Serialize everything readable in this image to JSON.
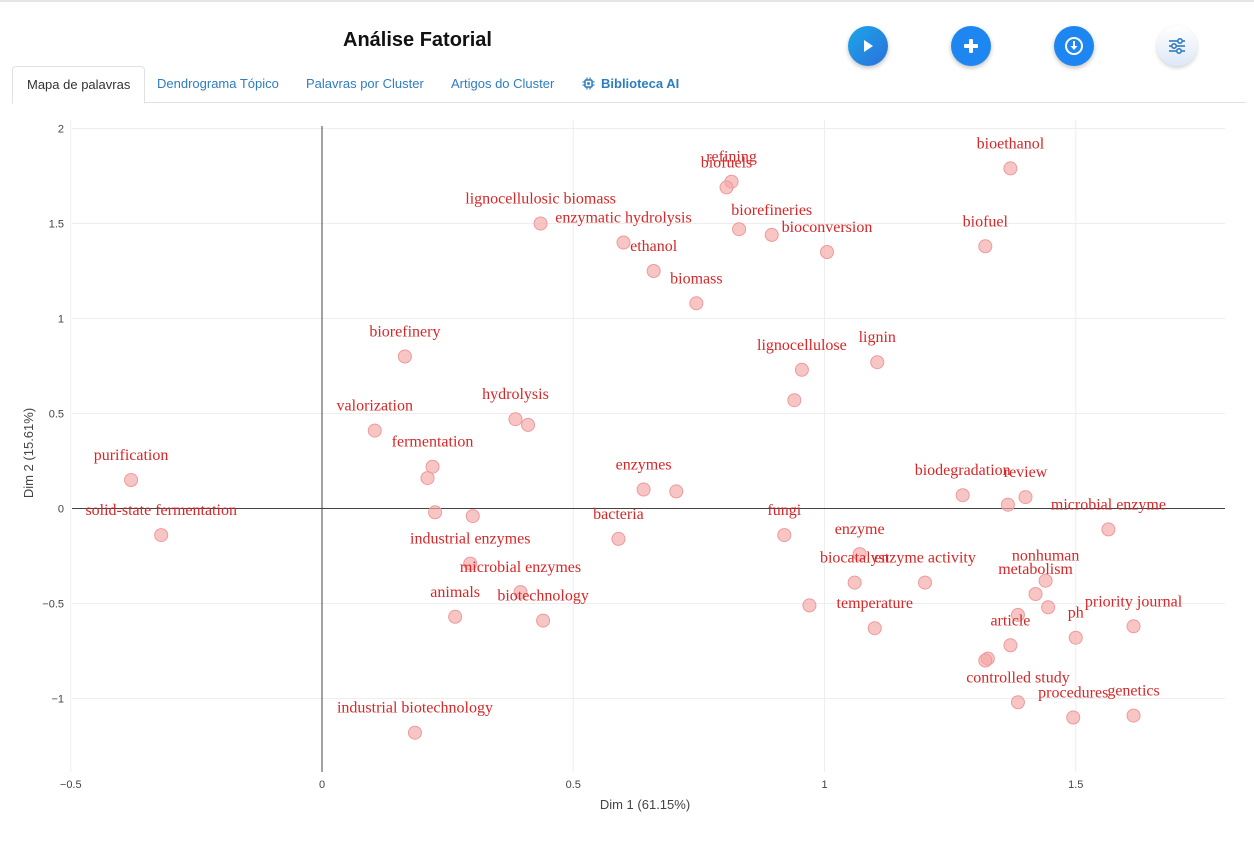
{
  "header": {
    "title": "Análise Fatorial",
    "buttons": [
      {
        "name": "play-button",
        "icon": "play-icon"
      },
      {
        "name": "add-button",
        "icon": "plus-icon"
      },
      {
        "name": "download-button",
        "icon": "download-icon"
      },
      {
        "name": "settings-button",
        "icon": "sliders-icon"
      }
    ]
  },
  "tabs": [
    {
      "label": "Mapa de palavras",
      "active": true
    },
    {
      "label": "Dendrograma Tópico",
      "active": false
    },
    {
      "label": "Palavras por Cluster",
      "active": false
    },
    {
      "label": "Artigos do Cluster",
      "active": false
    },
    {
      "label": "Biblioteca AI",
      "active": false,
      "icon": "chip-icon"
    }
  ],
  "colors": {
    "accent": "#1e86f0",
    "tab_link": "#2e7dc0",
    "label": "#d62728",
    "marker": "#f4a6a6"
  },
  "chart_data": {
    "type": "scatter",
    "title": "",
    "xlabel": "Dim 1 (61.15%)",
    "ylabel": "Dim 2 (15.61%)",
    "xlim": [
      -0.5,
      1.8
    ],
    "ylim": [
      -1.4,
      2.0
    ],
    "xticks": [
      -0.5,
      0,
      0.5,
      1,
      1.5
    ],
    "xtick_labels": [
      "−0.5",
      "0",
      "0.5",
      "1",
      "1.5"
    ],
    "yticks": [
      -1,
      -0.5,
      0,
      0.5,
      1,
      1.5,
      2
    ],
    "ytick_labels": [
      "−1",
      "−0.5",
      "0",
      "0.5",
      "1",
      "1.5",
      "2"
    ],
    "grid": true,
    "points": [
      {
        "label": "bioethanol",
        "x": 1.37,
        "y": 1.79
      },
      {
        "label": "refining",
        "x": 0.815,
        "y": 1.72
      },
      {
        "label": "biofuels",
        "x": 0.805,
        "y": 1.69
      },
      {
        "label": "lignocellulosic biomass",
        "x": 0.435,
        "y": 1.5
      },
      {
        "label": "enzymatic hydrolysis",
        "x": 0.6,
        "y": 1.4
      },
      {
        "label": "",
        "x": 0.83,
        "y": 1.47
      },
      {
        "label": "biorefineries",
        "x": 0.895,
        "y": 1.44
      },
      {
        "label": "bioconversion",
        "x": 1.005,
        "y": 1.35
      },
      {
        "label": "biofuel",
        "x": 1.32,
        "y": 1.38
      },
      {
        "label": "ethanol",
        "x": 0.66,
        "y": 1.25
      },
      {
        "label": "biomass",
        "x": 0.745,
        "y": 1.08
      },
      {
        "label": "biorefinery",
        "x": 0.165,
        "y": 0.8
      },
      {
        "label": "lignocellulose",
        "x": 0.955,
        "y": 0.73
      },
      {
        "label": "lignin",
        "x": 1.105,
        "y": 0.77
      },
      {
        "label": "",
        "x": 0.94,
        "y": 0.57
      },
      {
        "label": "valorization",
        "x": 0.105,
        "y": 0.41
      },
      {
        "label": "hydrolysis",
        "x": 0.385,
        "y": 0.47
      },
      {
        "label": "",
        "x": 0.41,
        "y": 0.44
      },
      {
        "label": "purification",
        "x": -0.38,
        "y": 0.15
      },
      {
        "label": "fermentation",
        "x": 0.22,
        "y": 0.22
      },
      {
        "label": "",
        "x": 0.21,
        "y": 0.16
      },
      {
        "label": "enzymes",
        "x": 0.64,
        "y": 0.1
      },
      {
        "label": "",
        "x": 0.705,
        "y": 0.09
      },
      {
        "label": "bacteria",
        "x": 0.59,
        "y": -0.16
      },
      {
        "label": "solid-state fermentation",
        "x": -0.32,
        "y": -0.14
      },
      {
        "label": "",
        "x": 0.225,
        "y": -0.02
      },
      {
        "label": "",
        "x": 0.3,
        "y": -0.04
      },
      {
        "label": "industrial enzymes",
        "x": 0.295,
        "y": -0.29
      },
      {
        "label": "microbial enzymes",
        "x": 0.395,
        "y": -0.44
      },
      {
        "label": "animals",
        "x": 0.265,
        "y": -0.57
      },
      {
        "label": "biotechnology",
        "x": 0.44,
        "y": -0.59
      },
      {
        "label": "fungi",
        "x": 0.92,
        "y": -0.14
      },
      {
        "label": "enzyme",
        "x": 1.07,
        "y": -0.24
      },
      {
        "label": "enzyme activity",
        "x": 1.2,
        "y": -0.39
      },
      {
        "label": "biocatalyst",
        "x": 1.06,
        "y": -0.39
      },
      {
        "label": "",
        "x": 0.97,
        "y": -0.51
      },
      {
        "label": "temperature",
        "x": 1.1,
        "y": -0.63
      },
      {
        "label": "biodegradation",
        "x": 1.275,
        "y": 0.07
      },
      {
        "label": "",
        "x": 1.365,
        "y": 0.02
      },
      {
        "label": "review",
        "x": 1.4,
        "y": 0.06
      },
      {
        "label": "microbial enzyme",
        "x": 1.565,
        "y": -0.11
      },
      {
        "label": "nonhuman",
        "x": 1.44,
        "y": -0.38
      },
      {
        "label": "metabolism",
        "x": 1.42,
        "y": -0.45
      },
      {
        "label": "",
        "x": 1.445,
        "y": -0.52
      },
      {
        "label": "",
        "x": 1.385,
        "y": -0.56
      },
      {
        "label": "ph",
        "x": 1.5,
        "y": -0.68
      },
      {
        "label": "priority journal",
        "x": 1.615,
        "y": -0.62
      },
      {
        "label": "article",
        "x": 1.37,
        "y": -0.72
      },
      {
        "label": "",
        "x": 1.325,
        "y": -0.79
      },
      {
        "label": "",
        "x": 1.32,
        "y": -0.8
      },
      {
        "label": "controlled study",
        "x": 1.385,
        "y": -1.02
      },
      {
        "label": "procedures",
        "x": 1.495,
        "y": -1.1
      },
      {
        "label": "genetics",
        "x": 1.615,
        "y": -1.09
      },
      {
        "label": "industrial biotechnology",
        "x": 0.185,
        "y": -1.18
      }
    ]
  }
}
